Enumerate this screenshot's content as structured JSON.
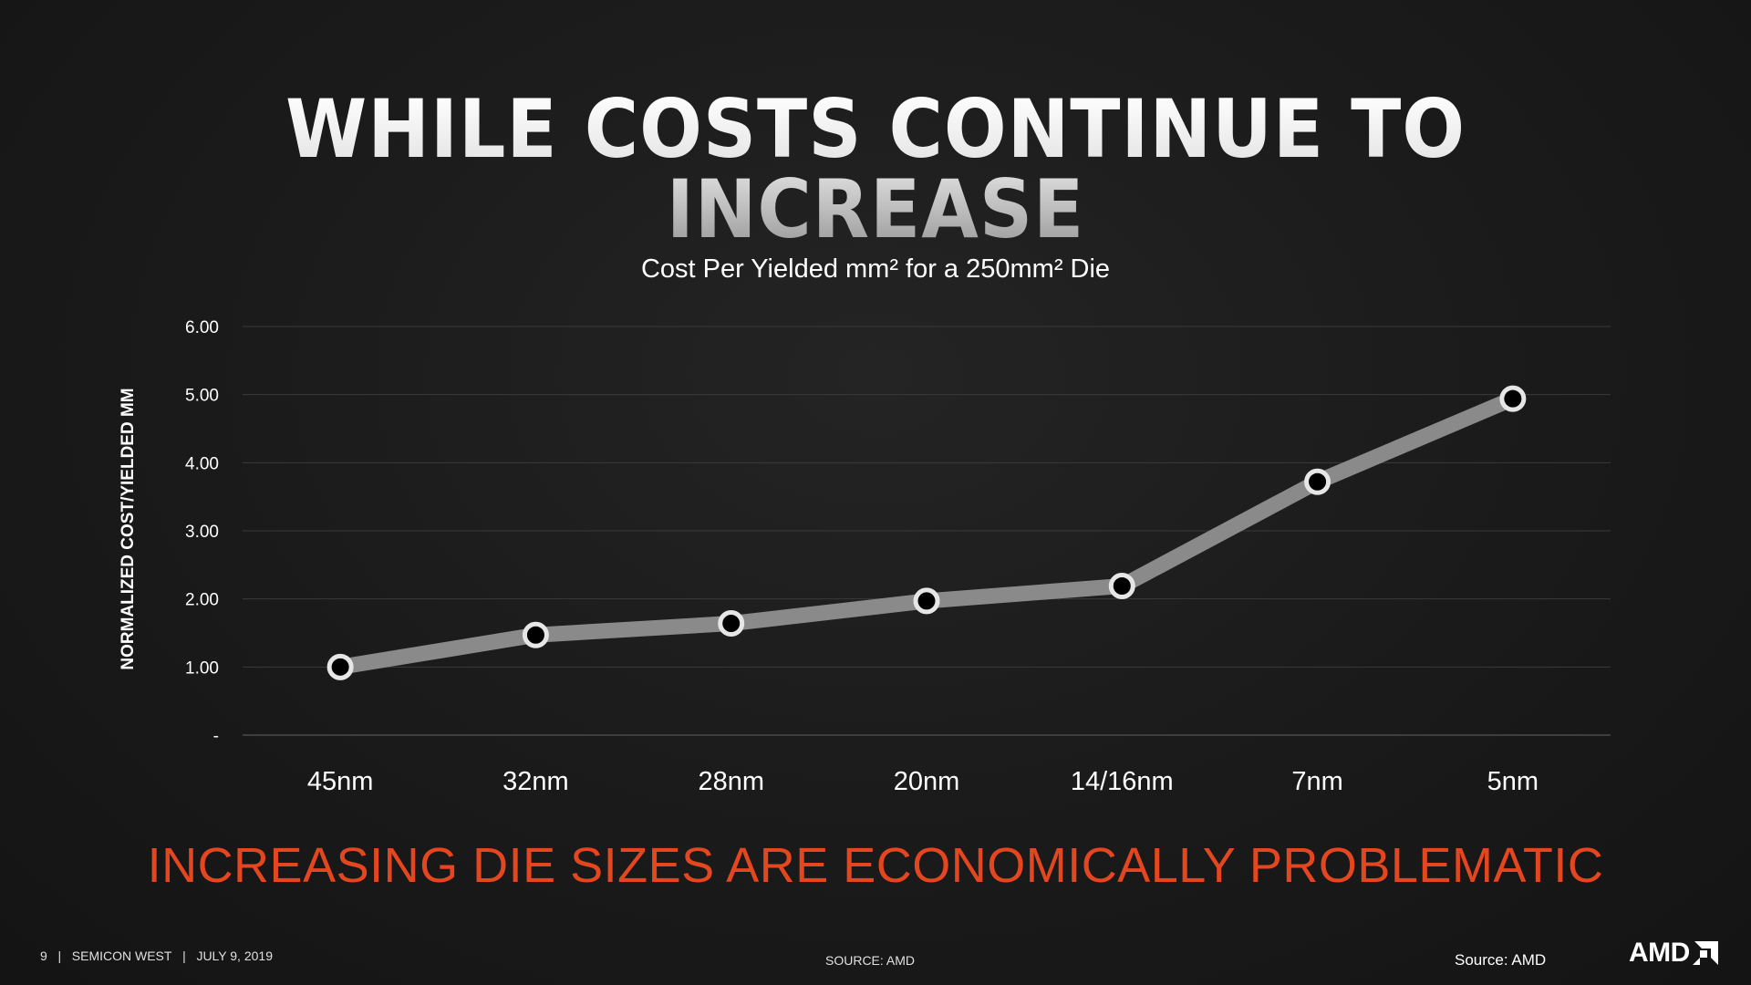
{
  "slide": {
    "title": "WHILE COSTS CONTINUE TO INCREASE",
    "subtitle": "INCREASING DIE SIZES ARE ECONOMICALLY PROBLEMATIC",
    "subtitle_color": "#e4461f",
    "footer": {
      "page_number": "9",
      "event": "SEMICON WEST",
      "date": "JULY 9, 2019",
      "separator": "|",
      "source_center": "SOURCE: AMD",
      "source_right": "Source: AMD"
    },
    "logo": {
      "text": "AMD",
      "icon": "amd-arrow-logo-icon"
    }
  },
  "chart_data": {
    "type": "line",
    "title": "Cost Per Yielded mm² for a 250mm² Die",
    "xlabel": "",
    "ylabel": "NORMALIZED COST/YIELDED MM",
    "categories": [
      "45nm",
      "32nm",
      "28nm",
      "20nm",
      "14/16nm",
      "7nm",
      "5nm"
    ],
    "series": [
      {
        "values": [
          1.0,
          1.47,
          1.64,
          1.97,
          2.19,
          3.72,
          4.94
        ]
      }
    ],
    "ylim": [
      0,
      6
    ],
    "yticks": [
      0,
      1,
      2,
      3,
      4,
      5,
      6
    ],
    "ytick_labels": [
      "-",
      "1.00",
      "2.00",
      "3.00",
      "4.00",
      "5.00",
      "6.00"
    ],
    "grid": true,
    "legend": "none",
    "line_color": "#8a8a8a",
    "marker_fill": "#000000",
    "marker_stroke": "#e6e6e6"
  }
}
